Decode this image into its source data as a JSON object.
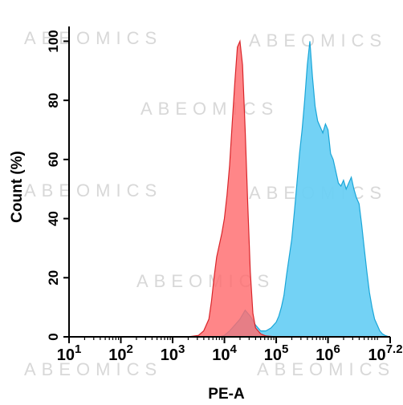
{
  "watermark": "ABEOMICS",
  "chart_data": {
    "type": "area",
    "title": "",
    "xlabel": "PE-A",
    "ylabel": "Count  (%)",
    "xscale": "log",
    "xlim": [
      1,
      7.2
    ],
    "ylim": [
      0,
      105
    ],
    "grid": false,
    "legend": "none",
    "x_ticks": [
      {
        "base": "10",
        "exp": "1",
        "value": 1
      },
      {
        "base": "10",
        "exp": "2",
        "value": 2
      },
      {
        "base": "10",
        "exp": "3",
        "value": 3
      },
      {
        "base": "10",
        "exp": "4",
        "value": 4
      },
      {
        "base": "10",
        "exp": "5",
        "value": 5
      },
      {
        "base": "10",
        "exp": "6",
        "value": 6
      },
      {
        "base": "10",
        "exp": "7.2",
        "value": 7.2
      }
    ],
    "y_ticks": [
      "0",
      "20",
      "40",
      "60",
      "80",
      "100"
    ],
    "series": [
      {
        "color": "#ff6b6e",
        "stroke": "#d9252a",
        "x": [
          3.3,
          3.5,
          3.6,
          3.7,
          3.75,
          3.8,
          3.85,
          3.9,
          3.95,
          4.0,
          4.05,
          4.1,
          4.15,
          4.2,
          4.25,
          4.3,
          4.35,
          4.4,
          4.45,
          4.5,
          4.55,
          4.6,
          4.7,
          4.8,
          5.0
        ],
        "values": [
          0,
          0.5,
          2,
          6,
          12,
          20,
          27,
          31,
          35,
          40,
          48,
          58,
          72,
          86,
          98,
          100,
          92,
          70,
          45,
          22,
          8,
          3,
          1,
          0.3,
          0
        ]
      },
      {
        "color": "#6cd0f4",
        "stroke": "#1aa6d8",
        "x": [
          3.9,
          4.0,
          4.1,
          4.2,
          4.3,
          4.4,
          4.5,
          4.6,
          4.7,
          4.8,
          4.9,
          5.0,
          5.05,
          5.1,
          5.15,
          5.2,
          5.25,
          5.3,
          5.35,
          5.4,
          5.45,
          5.5,
          5.55,
          5.6,
          5.65,
          5.7,
          5.75,
          5.8,
          5.85,
          5.9,
          5.95,
          6.0,
          6.05,
          6.1,
          6.15,
          6.2,
          6.25,
          6.3,
          6.35,
          6.4,
          6.45,
          6.5,
          6.55,
          6.6,
          6.65,
          6.7,
          6.75,
          6.8,
          6.85,
          6.9,
          6.95,
          7.0,
          7.05,
          7.1,
          7.15,
          7.2
        ],
        "values": [
          0,
          0.5,
          2,
          4,
          6,
          9,
          7,
          4,
          2,
          2,
          3,
          5,
          7,
          10,
          14,
          21,
          27,
          33,
          42,
          52,
          62,
          70,
          80,
          92,
          100,
          88,
          78,
          73,
          71,
          69,
          72,
          70,
          62,
          60,
          56,
          52,
          51,
          53,
          50,
          52,
          54,
          50,
          47,
          45,
          38,
          30,
          22,
          15,
          10,
          6,
          4,
          2,
          1,
          0.5,
          0.2,
          0
        ]
      }
    ]
  }
}
